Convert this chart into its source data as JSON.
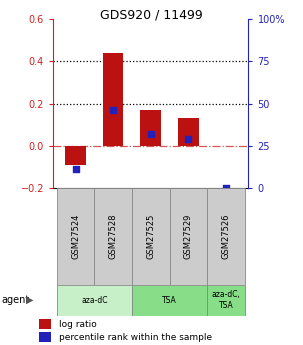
{
  "title": "GDS920 / 11499",
  "samples": [
    "GSM27524",
    "GSM27528",
    "GSM27525",
    "GSM27529",
    "GSM27526"
  ],
  "log_ratio": [
    -0.09,
    0.44,
    0.17,
    0.13,
    0.0
  ],
  "percentile_rank": [
    11,
    46,
    32,
    29,
    0
  ],
  "bar_color": "#bb1111",
  "dot_color": "#2222bb",
  "ylim_left": [
    -0.2,
    0.6
  ],
  "ylim_right": [
    0,
    100
  ],
  "yticks_left": [
    -0.2,
    0.0,
    0.2,
    0.4,
    0.6
  ],
  "yticks_right": [
    0,
    25,
    50,
    75,
    100
  ],
  "hline_dotted": [
    0.2,
    0.4
  ],
  "hline_dashdot": 0.0,
  "agent_colors_light": "#c8f0c8",
  "agent_colors_medium": "#88dd88",
  "agent_label": "agent",
  "legend_bar_label": "log ratio",
  "legend_dot_label": "percentile rank within the sample",
  "bar_width": 0.55,
  "sample_box_color": "#cccccc",
  "sample_box_edgecolor": "#888888",
  "left_tick_color": "#cc2222",
  "right_tick_color": "#2222bb"
}
